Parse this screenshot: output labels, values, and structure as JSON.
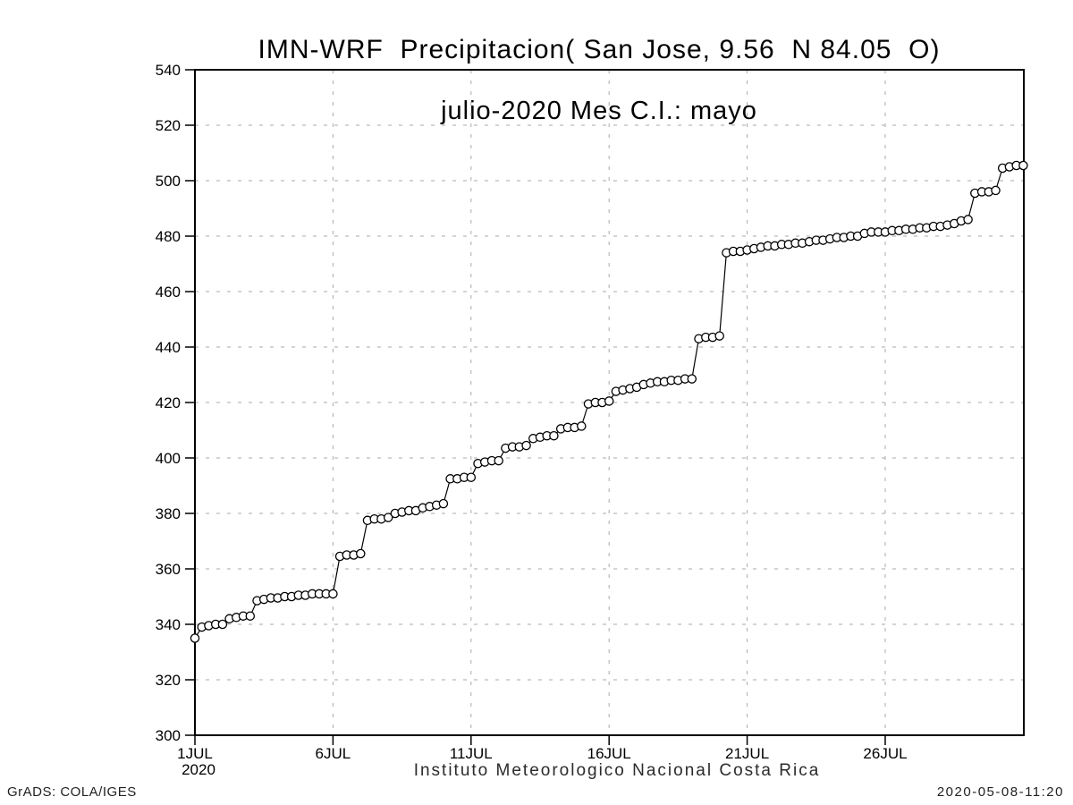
{
  "title": {
    "line1": "IMN-WRF  Precipitacion( San Jose, 9.56  N 84.05  O)",
    "line2": "julio-2020 Mes C.I.: mayo"
  },
  "footer": {
    "caption": "Instituto Meteorologico Nacional Costa Rica",
    "credit": "GrADS: COLA/IGES",
    "timestamp": "2020-05-08-11:20"
  },
  "colors": {
    "line": "#000000",
    "marker_fill": "#ffffff",
    "grid": "#aaaaaa",
    "frame": "#000000",
    "text": "#000000"
  },
  "chart_data": {
    "type": "line",
    "marker": "open-circle",
    "title": "IMN-WRF Precipitacion( San Jose, 9.56 N 84.05 O) julio-2020 Mes C.I.: mayo",
    "xlabel": "Instituto Meteorologico Nacional Costa Rica",
    "ylabel": "",
    "grid": "dotted",
    "legend": "none",
    "ylim": [
      300,
      540
    ],
    "ytick_step": 20,
    "xlim_days": [
      1,
      31.02
    ],
    "x_start_day": 1.0,
    "x_step_days": 0.25,
    "x_unit": "day of July 2020, 6-hourly samples",
    "xticks": [
      {
        "day": 1,
        "label": "1JUL",
        "sublabel": "2020"
      },
      {
        "day": 6,
        "label": "6JUL"
      },
      {
        "day": 11,
        "label": "11JUL"
      },
      {
        "day": 16,
        "label": "16JUL"
      },
      {
        "day": 21,
        "label": "21JUL"
      },
      {
        "day": 26,
        "label": "26JUL"
      }
    ],
    "series_name": "cumulative precipitation",
    "values": [
      335,
      339,
      339.5,
      340,
      340,
      342,
      342.5,
      343,
      343,
      348.5,
      349,
      349.5,
      349.5,
      350,
      350,
      350.5,
      350.5,
      351,
      351,
      351,
      351,
      364.5,
      365,
      365,
      365.5,
      377.5,
      378,
      378,
      378.5,
      380,
      380.5,
      381,
      381,
      382,
      382.5,
      383,
      383.5,
      392.5,
      392.5,
      393,
      393,
      398,
      398.5,
      399,
      399,
      403.5,
      404,
      404,
      404.5,
      407,
      407.5,
      408,
      408,
      410.5,
      411,
      411,
      411.5,
      419.5,
      420,
      420,
      420.5,
      424,
      424.5,
      425,
      425.5,
      426.5,
      427,
      427.5,
      427.5,
      428,
      428,
      428.5,
      428.5,
      443,
      443.5,
      443.5,
      444,
      474,
      474.5,
      474.5,
      475,
      475.5,
      476,
      476.5,
      476.5,
      477,
      477,
      477.5,
      477.5,
      478,
      478.5,
      478.5,
      479,
      479.5,
      479.5,
      480,
      480,
      481,
      481.5,
      481.5,
      481.5,
      482,
      482,
      482.5,
      482.5,
      483,
      483,
      483.5,
      483.5,
      484,
      484.5,
      485.5,
      486,
      495.5,
      496,
      496,
      496.5,
      504.5,
      505,
      505.5,
      505.5
    ]
  }
}
